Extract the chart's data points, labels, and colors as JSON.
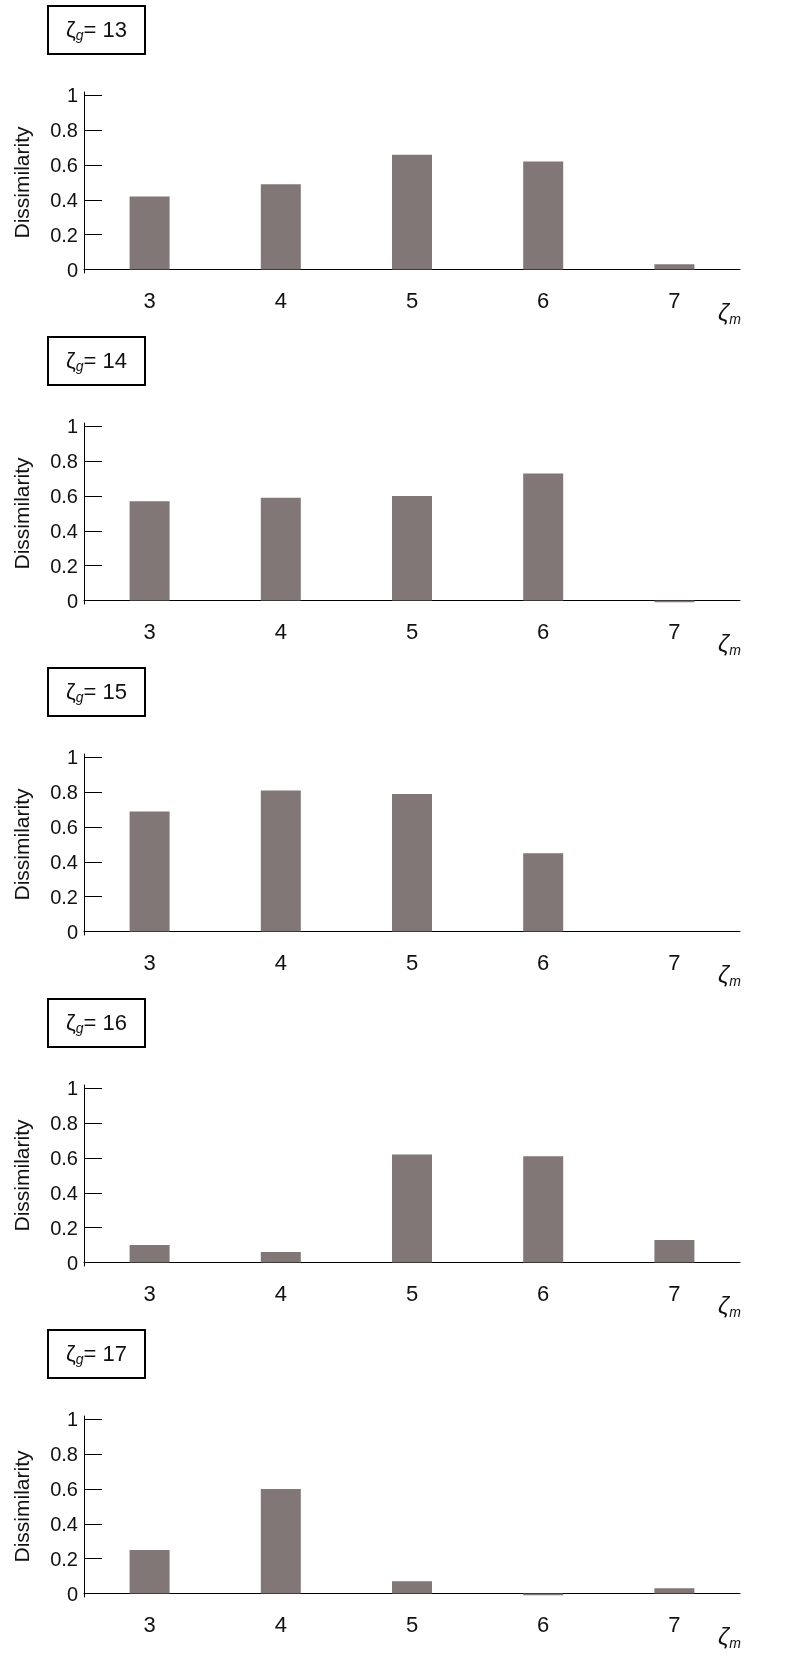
{
  "chart_data": [
    {
      "type": "bar",
      "title": "ζ$_{g}$= 13",
      "xlabel": "ζ$_{m}$",
      "ylabel": "Dissimilarity",
      "categories": [
        "3",
        "4",
        "5",
        "6",
        "7"
      ],
      "values": [
        0.42,
        0.49,
        0.66,
        0.62,
        0.03
      ],
      "color": "#807776",
      "ylim": [
        -0.02,
        1.02
      ],
      "yticks": [
        0,
        0.2,
        0.4,
        0.6,
        0.8,
        1
      ],
      "grid": false
    },
    {
      "type": "bar",
      "title": "ζ$_{g}$= 14",
      "xlabel": "ζ$_{m}$",
      "ylabel": "Dissimilarity",
      "categories": [
        "3",
        "4",
        "5",
        "6",
        "7"
      ],
      "values": [
        0.57,
        0.59,
        0.6,
        0.73,
        -0.01
      ],
      "color": "#807776",
      "ylim": [
        -0.02,
        1.02
      ],
      "yticks": [
        0,
        0.2,
        0.4,
        0.6,
        0.8,
        1
      ],
      "grid": false
    },
    {
      "type": "bar",
      "title": "ζ$_{g}$= 15",
      "xlabel": "ζ$_{m}$",
      "ylabel": "Dissimilarity",
      "categories": [
        "3",
        "4",
        "5",
        "6",
        "7"
      ],
      "values": [
        0.69,
        0.81,
        0.79,
        0.45,
        0
      ],
      "color": "#807776",
      "ylim": [
        -0.02,
        1.02
      ],
      "yticks": [
        0,
        0.2,
        0.4,
        0.6,
        0.8,
        1
      ],
      "grid": false
    },
    {
      "type": "bar",
      "title": "ζ$_{g}$= 16",
      "xlabel": "ζ$_{m}$",
      "ylabel": "Dissimilarity",
      "categories": [
        "3",
        "4",
        "5",
        "6",
        "7"
      ],
      "values": [
        0.1,
        0.06,
        0.62,
        0.61,
        0.13
      ],
      "color": "#807776",
      "ylim": [
        -0.02,
        1.02
      ],
      "yticks": [
        0,
        0.2,
        0.4,
        0.6,
        0.8,
        1
      ],
      "grid": false
    },
    {
      "type": "bar",
      "title": "ζ$_{g}$= 17",
      "xlabel": "ζ$_{m}$",
      "ylabel": "Dissimilarity",
      "categories": [
        "3",
        "4",
        "5",
        "6",
        "7"
      ],
      "values": [
        0.25,
        0.6,
        0.07,
        -0.01,
        0.03
      ],
      "color": "#807776",
      "ylim": [
        -0.02,
        1.02
      ],
      "yticks": [
        0,
        0.2,
        0.4,
        0.6,
        0.8,
        1
      ],
      "grid": false
    }
  ]
}
